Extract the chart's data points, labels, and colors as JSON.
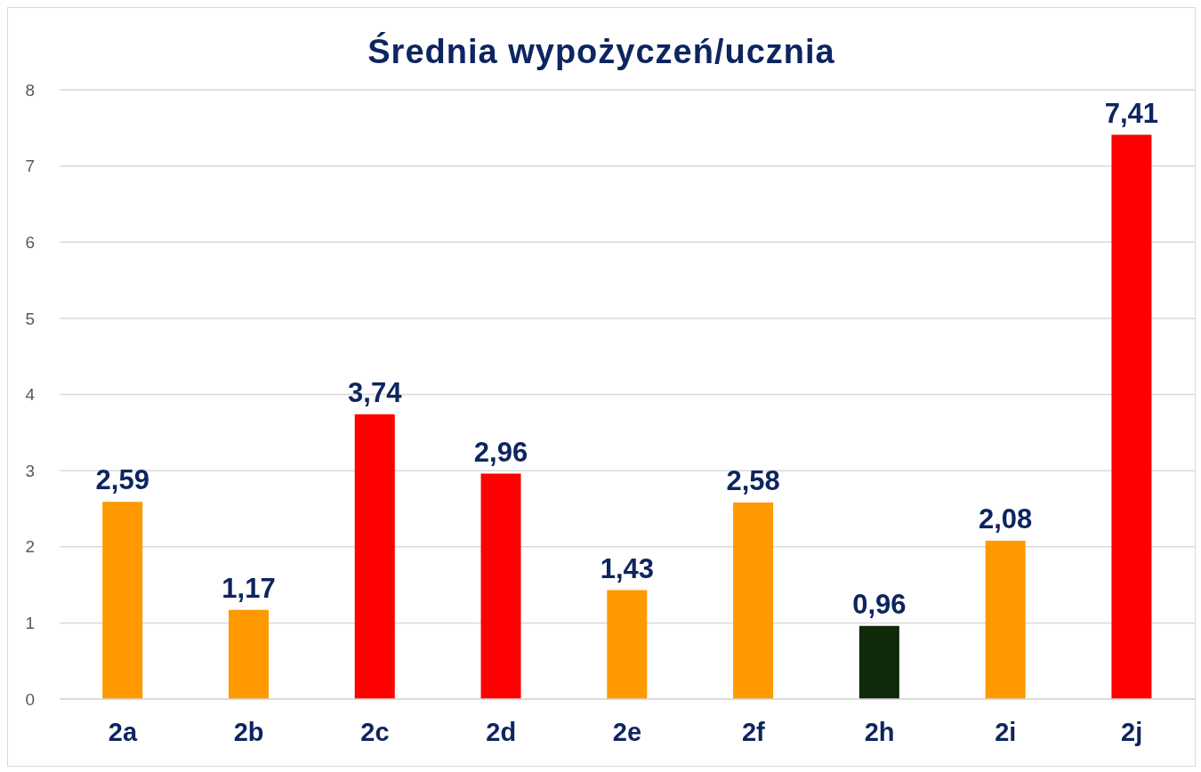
{
  "chart_data": {
    "type": "bar",
    "title": "Średnia wypożyczeń/ucznia",
    "categories": [
      "2a",
      "2b",
      "2c",
      "2d",
      "2e",
      "2f",
      "2h",
      "2i",
      "2j"
    ],
    "values": [
      2.59,
      1.17,
      3.74,
      2.96,
      1.43,
      2.58,
      0.96,
      2.08,
      7.41
    ],
    "colors": [
      "#ff9900",
      "#ff9900",
      "#ff0000",
      "#ff0000",
      "#ff9900",
      "#ff9900",
      "#0f2a0a",
      "#ff9900",
      "#ff0000"
    ],
    "value_labels": [
      "2,59",
      "1,17",
      "3,74",
      "2,96",
      "1,43",
      "2,58",
      "0,96",
      "2,08",
      "7,41"
    ],
    "ylim": [
      0,
      8
    ],
    "yticks": [
      0,
      1,
      2,
      3,
      4,
      5,
      6,
      7,
      8
    ],
    "grid": "y"
  }
}
